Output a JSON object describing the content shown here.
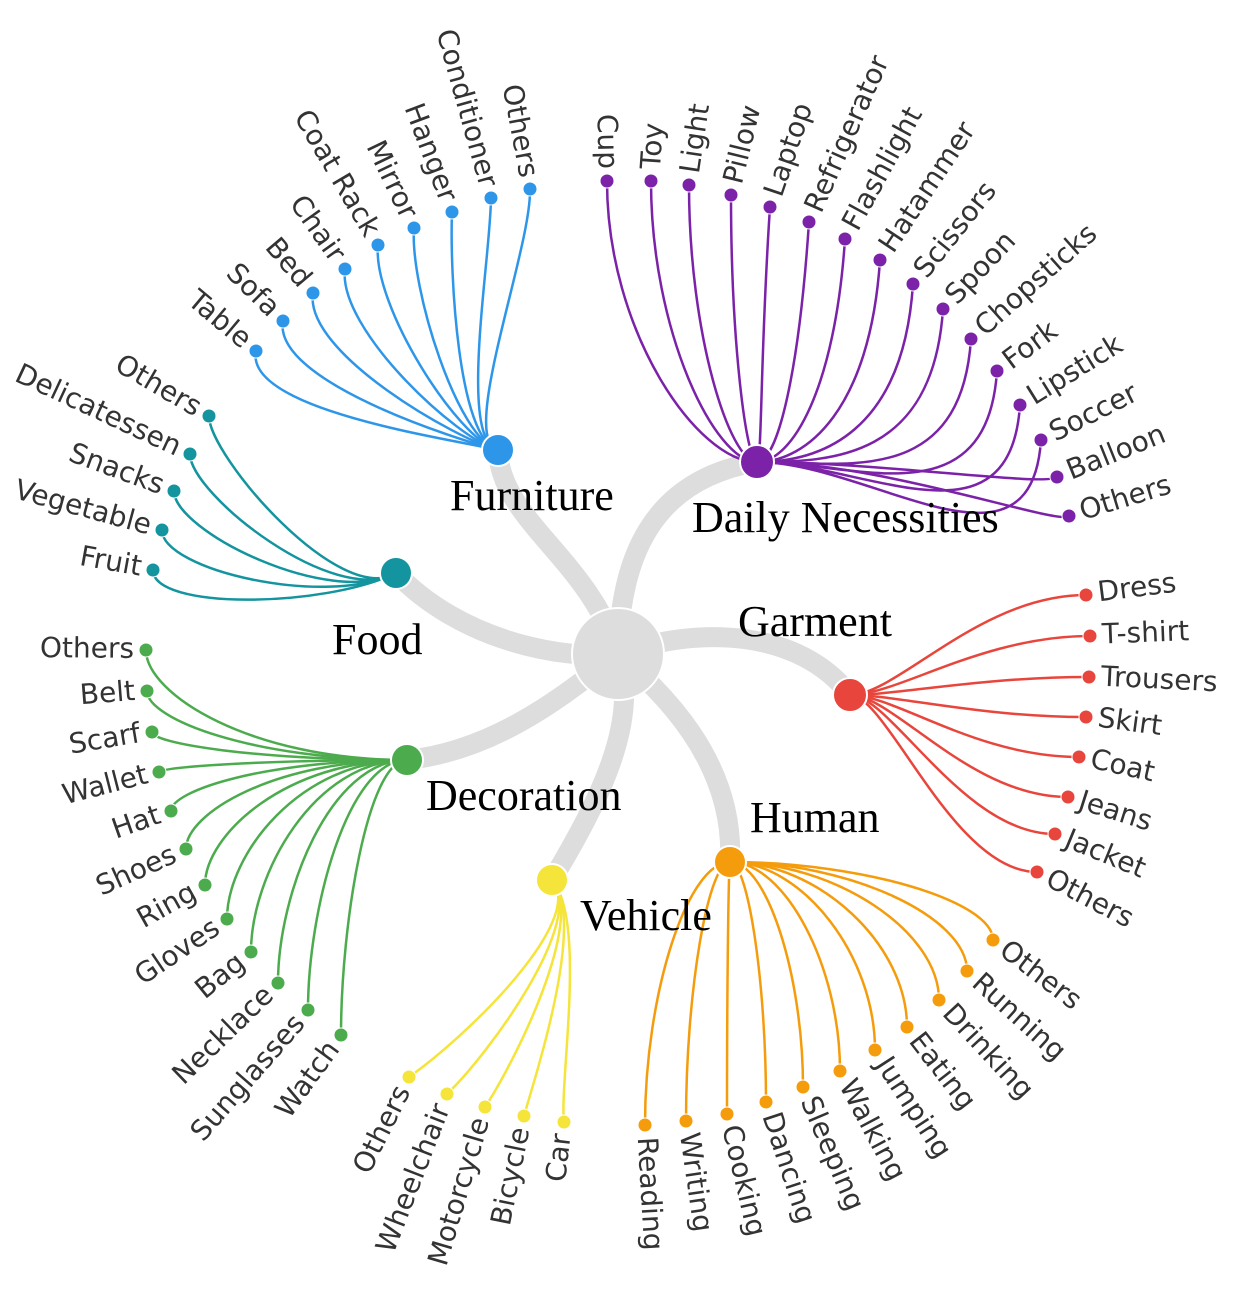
{
  "colors": {
    "hub": "#dddddd",
    "trunk": "#dddddd",
    "text": "#333333"
  },
  "categories": [
    {
      "name": "Furniture",
      "color": "#2e96e9",
      "items": [
        "Table",
        "Sofa",
        "Bed",
        "Chair",
        "Coat Rack",
        "Mirror",
        "Hanger",
        "Conditioner",
        "Others"
      ]
    },
    {
      "name": "Daily Necessities",
      "color": "#7b22a8",
      "items": [
        "Cup",
        "Toy",
        "Light",
        "Pillow",
        "Laptop",
        "Refrigerator",
        "Flashlight",
        "Hatammer",
        "Scissors",
        "Spoon",
        "Chopsticks",
        "Fork",
        "Lipstick",
        "Soccer",
        "Balloon",
        "Others"
      ]
    },
    {
      "name": "Garment",
      "color": "#e8463c",
      "items": [
        "Dress",
        "T-shirt",
        "Trousers",
        "Skirt",
        "Coat",
        "Jeans",
        "Jacket",
        "Others"
      ]
    },
    {
      "name": "Human",
      "color": "#f59c0c",
      "items": [
        "Others",
        "Running",
        "Drinking",
        "Eating",
        "Jumping",
        "Walking",
        "Sleeping",
        "Dancing",
        "Cooking",
        "Writing",
        "Reading"
      ]
    },
    {
      "name": "Vehicle",
      "color": "#f5e43a",
      "items": [
        "Car",
        "Bicycle",
        "Motorcycle",
        "Wheelchair",
        "Others"
      ]
    },
    {
      "name": "Decoration",
      "color": "#4cab4d",
      "items": [
        "Others",
        "Belt",
        "Scarf",
        "Wallet",
        "Hat",
        "Shoes",
        "Ring",
        "Gloves",
        "Bag",
        "Necklace",
        "Sunglasses",
        "Watch"
      ]
    },
    {
      "name": "Food",
      "color": "#13949e",
      "items": [
        "Others",
        "Delicatessen",
        "Snacks",
        "Vegetable",
        "Fruit"
      ]
    }
  ]
}
